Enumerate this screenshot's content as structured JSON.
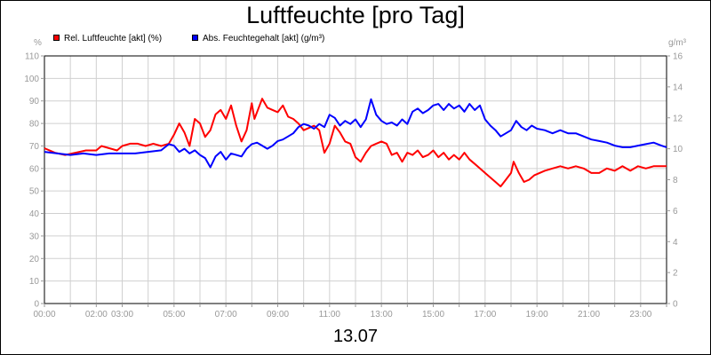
{
  "chart_data": {
    "type": "line",
    "title": "Luftfeuchte [pro Tag]",
    "xlabel": "13.07",
    "left_unit": "%",
    "right_unit": "g/m³",
    "x_ticks": [
      "00:00",
      "02:00",
      "03:00",
      "05:00",
      "07:00",
      "09:00",
      "11:00",
      "13:00",
      "15:00",
      "17:00",
      "19:00",
      "21:00",
      "23:00"
    ],
    "x_range": [
      0,
      24
    ],
    "y_left": {
      "min": 0,
      "max": 110,
      "ticks": [
        0,
        10,
        20,
        30,
        40,
        50,
        60,
        70,
        80,
        90,
        100,
        110
      ]
    },
    "y_right": {
      "min": 0,
      "max": 16,
      "ticks": [
        0,
        2,
        4,
        6,
        8,
        10,
        12,
        14,
        16
      ]
    },
    "grid": true,
    "legend_position": "top-left",
    "series": [
      {
        "name": "Rel. Luftfeuchte [akt] (%)",
        "color": "#ff0000",
        "axis": "left",
        "points": [
          [
            0.0,
            69
          ],
          [
            0.4,
            67
          ],
          [
            0.8,
            66
          ],
          [
            1.2,
            67
          ],
          [
            1.6,
            68
          ],
          [
            2.0,
            68
          ],
          [
            2.2,
            70
          ],
          [
            2.5,
            69
          ],
          [
            2.8,
            68
          ],
          [
            3.0,
            70
          ],
          [
            3.3,
            71
          ],
          [
            3.6,
            71
          ],
          [
            3.9,
            70
          ],
          [
            4.2,
            71
          ],
          [
            4.5,
            70
          ],
          [
            4.8,
            71
          ],
          [
            5.0,
            75
          ],
          [
            5.2,
            80
          ],
          [
            5.4,
            76
          ],
          [
            5.6,
            70
          ],
          [
            5.8,
            82
          ],
          [
            6.0,
            80
          ],
          [
            6.2,
            74
          ],
          [
            6.4,
            77
          ],
          [
            6.6,
            84
          ],
          [
            6.8,
            86
          ],
          [
            7.0,
            82
          ],
          [
            7.2,
            88
          ],
          [
            7.4,
            79
          ],
          [
            7.6,
            72
          ],
          [
            7.8,
            77
          ],
          [
            8.0,
            89
          ],
          [
            8.1,
            82
          ],
          [
            8.4,
            91
          ],
          [
            8.6,
            87
          ],
          [
            8.8,
            86
          ],
          [
            9.0,
            85
          ],
          [
            9.2,
            88
          ],
          [
            9.4,
            83
          ],
          [
            9.6,
            82
          ],
          [
            9.8,
            80
          ],
          [
            10.0,
            77
          ],
          [
            10.2,
            78
          ],
          [
            10.4,
            79
          ],
          [
            10.6,
            77
          ],
          [
            10.8,
            67
          ],
          [
            11.0,
            71
          ],
          [
            11.2,
            79
          ],
          [
            11.4,
            76
          ],
          [
            11.6,
            72
          ],
          [
            11.8,
            71
          ],
          [
            12.0,
            65
          ],
          [
            12.2,
            63
          ],
          [
            12.4,
            67
          ],
          [
            12.6,
            70
          ],
          [
            12.8,
            71
          ],
          [
            13.0,
            72
          ],
          [
            13.2,
            71
          ],
          [
            13.4,
            66
          ],
          [
            13.6,
            67
          ],
          [
            13.8,
            63
          ],
          [
            14.0,
            67
          ],
          [
            14.2,
            66
          ],
          [
            14.4,
            68
          ],
          [
            14.6,
            65
          ],
          [
            14.8,
            66
          ],
          [
            15.0,
            68
          ],
          [
            15.2,
            65
          ],
          [
            15.4,
            67
          ],
          [
            15.6,
            64
          ],
          [
            15.8,
            66
          ],
          [
            16.0,
            64
          ],
          [
            16.2,
            67
          ],
          [
            16.4,
            64
          ],
          [
            16.6,
            62
          ],
          [
            16.8,
            60
          ],
          [
            17.0,
            58
          ],
          [
            17.2,
            56
          ],
          [
            17.4,
            54
          ],
          [
            17.6,
            52
          ],
          [
            17.8,
            55
          ],
          [
            18.0,
            58
          ],
          [
            18.1,
            63
          ],
          [
            18.3,
            58
          ],
          [
            18.5,
            54
          ],
          [
            18.7,
            55
          ],
          [
            18.9,
            57
          ],
          [
            19.1,
            58
          ],
          [
            19.3,
            59
          ],
          [
            19.6,
            60
          ],
          [
            19.9,
            61
          ],
          [
            20.2,
            60
          ],
          [
            20.5,
            61
          ],
          [
            20.8,
            60
          ],
          [
            21.1,
            58
          ],
          [
            21.4,
            58
          ],
          [
            21.7,
            60
          ],
          [
            22.0,
            59
          ],
          [
            22.3,
            61
          ],
          [
            22.6,
            59
          ],
          [
            22.9,
            61
          ],
          [
            23.2,
            60
          ],
          [
            23.5,
            61
          ],
          [
            24.0,
            61
          ]
        ]
      },
      {
        "name": "Abs. Feuchtegehalt [akt] (g/m³)",
        "color": "#0000ff",
        "axis": "right",
        "points": [
          [
            0.0,
            9.8
          ],
          [
            0.5,
            9.7
          ],
          [
            1.0,
            9.6
          ],
          [
            1.5,
            9.7
          ],
          [
            2.0,
            9.6
          ],
          [
            2.5,
            9.7
          ],
          [
            3.0,
            9.7
          ],
          [
            3.5,
            9.7
          ],
          [
            4.0,
            9.8
          ],
          [
            4.5,
            9.9
          ],
          [
            4.8,
            10.3
          ],
          [
            5.0,
            10.2
          ],
          [
            5.2,
            9.8
          ],
          [
            5.4,
            10.0
          ],
          [
            5.6,
            9.7
          ],
          [
            5.8,
            9.9
          ],
          [
            6.0,
            9.6
          ],
          [
            6.2,
            9.4
          ],
          [
            6.4,
            8.8
          ],
          [
            6.6,
            9.5
          ],
          [
            6.8,
            9.8
          ],
          [
            7.0,
            9.3
          ],
          [
            7.2,
            9.7
          ],
          [
            7.4,
            9.6
          ],
          [
            7.6,
            9.5
          ],
          [
            7.8,
            10.0
          ],
          [
            8.0,
            10.3
          ],
          [
            8.2,
            10.4
          ],
          [
            8.4,
            10.2
          ],
          [
            8.6,
            10.0
          ],
          [
            8.8,
            10.2
          ],
          [
            9.0,
            10.5
          ],
          [
            9.2,
            10.6
          ],
          [
            9.4,
            10.8
          ],
          [
            9.6,
            11.0
          ],
          [
            9.8,
            11.4
          ],
          [
            10.0,
            11.6
          ],
          [
            10.2,
            11.5
          ],
          [
            10.4,
            11.3
          ],
          [
            10.6,
            11.6
          ],
          [
            10.8,
            11.4
          ],
          [
            11.0,
            12.2
          ],
          [
            11.2,
            12.0
          ],
          [
            11.4,
            11.5
          ],
          [
            11.6,
            11.8
          ],
          [
            11.8,
            11.6
          ],
          [
            12.0,
            11.9
          ],
          [
            12.2,
            11.4
          ],
          [
            12.4,
            11.9
          ],
          [
            12.6,
            13.2
          ],
          [
            12.8,
            12.2
          ],
          [
            13.0,
            11.8
          ],
          [
            13.2,
            11.6
          ],
          [
            13.4,
            11.7
          ],
          [
            13.6,
            11.5
          ],
          [
            13.8,
            11.9
          ],
          [
            14.0,
            11.6
          ],
          [
            14.2,
            12.4
          ],
          [
            14.4,
            12.6
          ],
          [
            14.6,
            12.3
          ],
          [
            14.8,
            12.5
          ],
          [
            15.0,
            12.8
          ],
          [
            15.2,
            12.9
          ],
          [
            15.4,
            12.5
          ],
          [
            15.6,
            12.9
          ],
          [
            15.8,
            12.6
          ],
          [
            16.0,
            12.8
          ],
          [
            16.2,
            12.4
          ],
          [
            16.4,
            12.9
          ],
          [
            16.6,
            12.5
          ],
          [
            16.8,
            12.8
          ],
          [
            17.0,
            11.9
          ],
          [
            17.2,
            11.5
          ],
          [
            17.4,
            11.2
          ],
          [
            17.6,
            10.8
          ],
          [
            17.8,
            11.0
          ],
          [
            18.0,
            11.2
          ],
          [
            18.2,
            11.8
          ],
          [
            18.4,
            11.4
          ],
          [
            18.6,
            11.2
          ],
          [
            18.8,
            11.5
          ],
          [
            19.0,
            11.3
          ],
          [
            19.3,
            11.2
          ],
          [
            19.6,
            11.0
          ],
          [
            19.9,
            11.2
          ],
          [
            20.2,
            11.0
          ],
          [
            20.5,
            11.0
          ],
          [
            20.8,
            10.8
          ],
          [
            21.1,
            10.6
          ],
          [
            21.4,
            10.5
          ],
          [
            21.7,
            10.4
          ],
          [
            22.0,
            10.2
          ],
          [
            22.3,
            10.1
          ],
          [
            22.6,
            10.1
          ],
          [
            22.9,
            10.2
          ],
          [
            23.2,
            10.3
          ],
          [
            23.5,
            10.4
          ],
          [
            23.8,
            10.2
          ],
          [
            24.0,
            10.1
          ]
        ]
      }
    ]
  }
}
